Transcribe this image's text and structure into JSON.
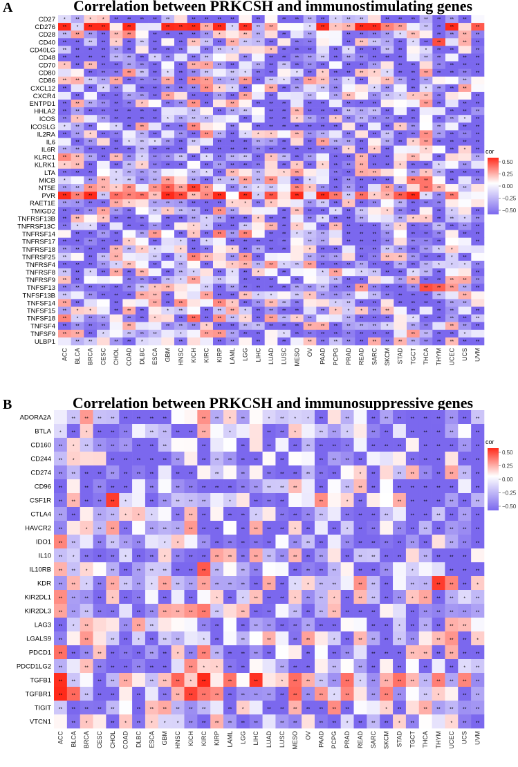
{
  "chart_data": [
    {
      "type": "heatmap",
      "panel_label": "A",
      "title": "Correlation between PRKCSH and immunostimulating genes",
      "xlabel": "",
      "ylabel": "",
      "legend_title": "cor",
      "legend_ticks": [
        "0.50",
        "0.25",
        "0.00",
        "−0.25",
        "−0.50"
      ],
      "color_range": [
        -0.5,
        0.6
      ],
      "colors": {
        "low": "#7b68ee",
        "mid": "#ffffff",
        "high": "#ff2a1a"
      },
      "x": [
        "ACC",
        "BLCA",
        "BRCA",
        "CESC",
        "CHOL",
        "COAD",
        "DLBC",
        "ESCA",
        "GBM",
        "HNSC",
        "KICH",
        "KIRC",
        "KIRP",
        "LAML",
        "LGG",
        "LIHC",
        "LUAD",
        "LUSC",
        "MESO",
        "OV",
        "PAAD",
        "PCPG",
        "PRAD",
        "READ",
        "SARC",
        "SKCM",
        "STAD",
        "TGCT",
        "THCA",
        "THYM",
        "UCEC",
        "UCS",
        "UVM"
      ],
      "y": [
        "CD27",
        "CD276",
        "CD28",
        "CD40",
        "CD40LG",
        "CD48",
        "CD70",
        "CD80",
        "CD86",
        "CXCL12",
        "CXCR4",
        "ENTPD1",
        "HHLA2",
        "ICOS",
        "ICOSLG",
        "IL2RA",
        "IL6",
        "IL6R",
        "KLRC1",
        "KLRK1",
        "LTA",
        "MICB",
        "NT5E",
        "PVR",
        "RAET1E",
        "TMIGD2",
        "TNFRSF13B",
        "TNFRSF13C",
        "TNFRSF14",
        "TNFRSF17",
        "TNFRSF18",
        "TNFRSF25",
        "TNFRSF4",
        "TNFRSF8",
        "TNFRSF9",
        "TNFSF13",
        "TNFSF13B",
        "TNFSF14",
        "TNFSF15",
        "TNFSF18",
        "TNFSF4",
        "TNFSF9",
        "ULBP1"
      ]
    },
    {
      "type": "heatmap",
      "panel_label": "B",
      "title": "Correlation between PRKCSH and immunosuppressive genes",
      "xlabel": "",
      "ylabel": "",
      "legend_title": "cor",
      "legend_ticks": [
        "0.50",
        "0.25",
        "0.00",
        "−0.25",
        "−0.50"
      ],
      "color_range": [
        -0.5,
        0.6
      ],
      "colors": {
        "low": "#7b68ee",
        "mid": "#ffffff",
        "high": "#ff2a1a"
      },
      "x": [
        "ACC",
        "BLCA",
        "BRCA",
        "CESC",
        "CHOL",
        "COAD",
        "DLBC",
        "ESCA",
        "GBM",
        "HNSC",
        "KICH",
        "KIRC",
        "KIRP",
        "LAML",
        "LGG",
        "LIHC",
        "LUAD",
        "LUSC",
        "MESO",
        "OV",
        "PAAD",
        "PCPG",
        "PRAD",
        "READ",
        "SARC",
        "SKCM",
        "STAD",
        "TGCT",
        "THCA",
        "THYM",
        "UCEC",
        "UCS",
        "UVM"
      ],
      "y": [
        "ADORA2A",
        "BTLA",
        "CD160",
        "CD244",
        "CD274",
        "CD96",
        "CSF1R",
        "CTLA4",
        "HAVCR2",
        "IDO1",
        "IL10",
        "IL10RB",
        "KDR",
        "KIR2DL1",
        "KIR2DL3",
        "LAG3",
        "LGALS9",
        "PDCD1",
        "PDCD1LG2",
        "TGFB1",
        "TGFBR1",
        "TIGIT",
        "VTCN1"
      ]
    }
  ]
}
